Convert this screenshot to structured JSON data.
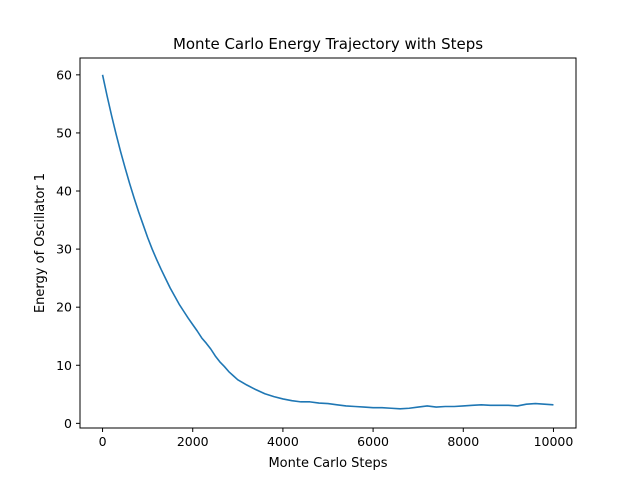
{
  "chart_data": {
    "type": "line",
    "title": "Monte Carlo Energy Trajectory with Steps",
    "xlabel": "Monte Carlo Steps",
    "ylabel": "Energy of Oscillator 1",
    "xlim": [
      -500,
      10500
    ],
    "ylim": [
      -0.8,
      62.9
    ],
    "xticks": [
      0,
      2000,
      4000,
      6000,
      8000,
      10000
    ],
    "yticks": [
      0,
      10,
      20,
      30,
      40,
      50,
      60
    ],
    "xtick_labels": [
      "0",
      "2000",
      "4000",
      "6000",
      "8000",
      "10000"
    ],
    "ytick_labels": [
      "0",
      "10",
      "20",
      "30",
      "40",
      "50",
      "60"
    ],
    "grid": false,
    "series": [
      {
        "color": "#1f77b4",
        "x": [
          0,
          100,
          200,
          300,
          400,
          500,
          600,
          700,
          800,
          900,
          1000,
          1100,
          1200,
          1300,
          1400,
          1500,
          1600,
          1700,
          1800,
          1900,
          2000,
          2100,
          2200,
          2300,
          2400,
          2500,
          2600,
          2700,
          2800,
          2900,
          3000,
          3200,
          3400,
          3600,
          3800,
          4000,
          4200,
          4400,
          4600,
          4800,
          5000,
          5200,
          5400,
          5600,
          5800,
          6000,
          6200,
          6400,
          6600,
          6800,
          7000,
          7200,
          7400,
          7600,
          7800,
          8000,
          8200,
          8400,
          8600,
          8800,
          9000,
          9200,
          9400,
          9600,
          9800,
          10000
        ],
        "y": [
          60,
          56.4,
          53.0,
          49.8,
          46.8,
          44.0,
          41.3,
          38.8,
          36.4,
          34.2,
          32.0,
          30.0,
          28.2,
          26.5,
          24.9,
          23.3,
          21.9,
          20.5,
          19.3,
          18.1,
          17.0,
          15.9,
          14.7,
          13.8,
          12.8,
          11.6,
          10.6,
          9.8,
          8.9,
          8.2,
          7.5,
          6.6,
          5.8,
          5.1,
          4.6,
          4.2,
          3.9,
          3.7,
          3.7,
          3.5,
          3.4,
          3.2,
          3.0,
          2.9,
          2.8,
          2.7,
          2.7,
          2.6,
          2.5,
          2.6,
          2.8,
          3.0,
          2.8,
          2.9,
          2.9,
          3.0,
          3.1,
          3.2,
          3.1,
          3.1,
          3.1,
          3.0,
          3.3,
          3.4,
          3.3,
          3.2
        ]
      }
    ]
  }
}
